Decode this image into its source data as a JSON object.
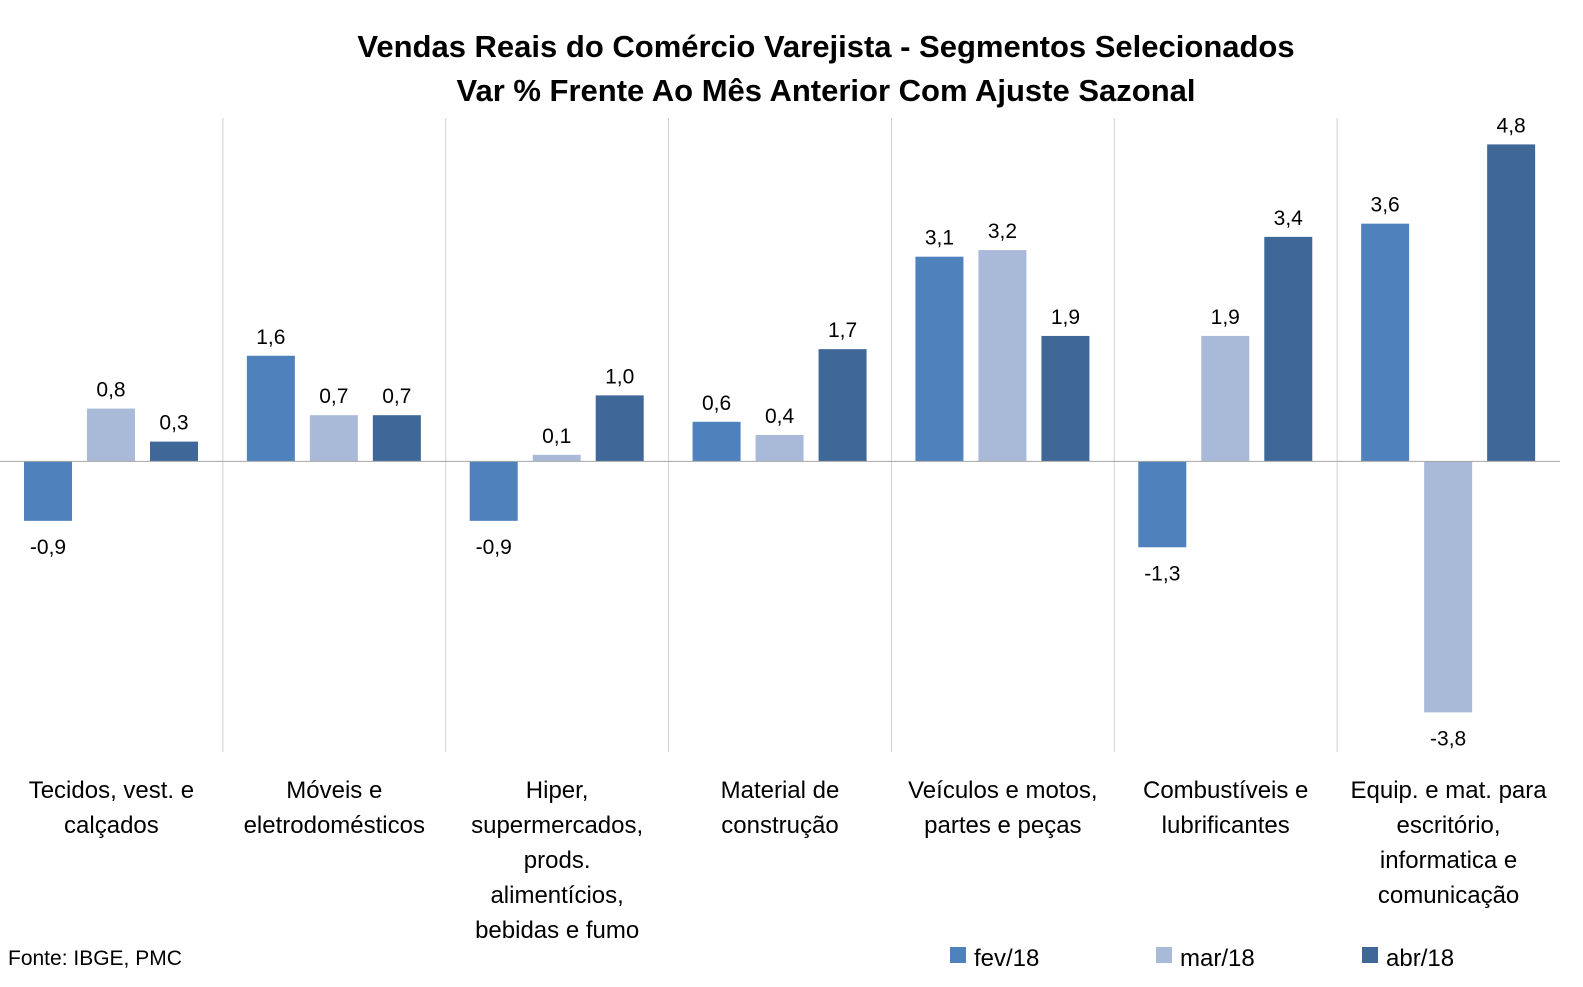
{
  "chart_data": {
    "type": "bar",
    "title": "Vendas Reais do Comércio Varejista - Segmentos Selecionados",
    "subtitle": "Var % Frente Ao Mês Anterior Com Ajuste Sazonal",
    "categories": [
      [
        "Tecidos, vest. e",
        "calçados"
      ],
      [
        "Móveis e",
        "eletrodomésticos"
      ],
      [
        "Hiper,",
        "supermercados,",
        "prods.",
        "alimentícios,",
        "bebidas e fumo"
      ],
      [
        "Material de",
        "construção"
      ],
      [
        "Veículos e motos,",
        "partes e peças"
      ],
      [
        "Combustíveis e",
        "lubrificantes"
      ],
      [
        "Equip. e mat. para",
        "escritório,",
        "informatica e",
        "comunicação"
      ]
    ],
    "series": [
      {
        "name": "fev/18",
        "color": "#4f81bd",
        "values": [
          -0.9,
          1.6,
          -0.9,
          0.6,
          3.1,
          -1.3,
          3.6
        ],
        "labels": [
          "-0,9",
          "1,6",
          "-0,9",
          "0,6",
          "3,1",
          "-1,3",
          "3,6"
        ]
      },
      {
        "name": "mar/18",
        "color": "#a9bad9",
        "values": [
          0.8,
          0.7,
          0.1,
          0.4,
          3.2,
          1.9,
          -3.8
        ],
        "labels": [
          "0,8",
          "0,7",
          "0,1",
          "0,4",
          "3,2",
          "1,9",
          "-3,8"
        ]
      },
      {
        "name": "abr/18",
        "color": "#3f6899",
        "values": [
          0.3,
          0.7,
          1.0,
          1.7,
          1.9,
          3.4,
          4.8
        ],
        "labels": [
          "0,3",
          "0,7",
          "1,0",
          "1,7",
          "1,9",
          "3,4",
          "4,8"
        ]
      }
    ],
    "ylim": [
      -4.4,
      5.2
    ],
    "grid": false,
    "legend_position": "bottom-right",
    "source": "Fonte: IBGE, PMC"
  }
}
